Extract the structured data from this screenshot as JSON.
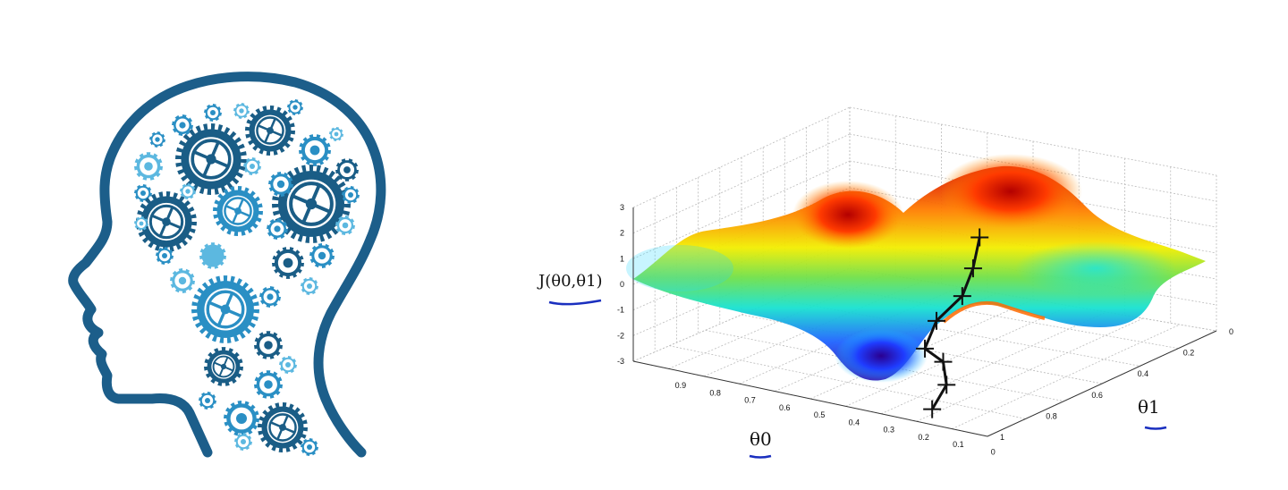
{
  "chart_data": {
    "type": "surface",
    "zlabel": "J(θ0,θ1)",
    "xlabel": "θ0",
    "ylabel": "θ1",
    "z_ticks": [
      "3",
      "2",
      "1",
      "0",
      "-1",
      "-2",
      "-3"
    ],
    "x_ticks": [
      "0.9",
      "0.8",
      "0.7",
      "0.6",
      "0.5",
      "0.4",
      "0.3",
      "0.2",
      "0.1",
      "0"
    ],
    "y_ticks": [
      "0",
      "0.2",
      "0.4",
      "0.6",
      "0.8",
      "1"
    ],
    "zlim": [
      -3,
      3
    ],
    "xlim": [
      1,
      0
    ],
    "ylim": [
      0,
      1
    ],
    "colormap": "jet",
    "descent_path": [
      {
        "theta0": 0.45,
        "theta1": 0.3,
        "J": 2.3
      },
      {
        "theta0": 0.45,
        "theta1": 0.33,
        "J": 1.2
      },
      {
        "theta0": 0.45,
        "theta1": 0.38,
        "J": 0.3
      },
      {
        "theta0": 0.48,
        "theta1": 0.45,
        "J": -0.5
      },
      {
        "theta0": 0.47,
        "theta1": 0.52,
        "J": -1.3
      },
      {
        "theta0": 0.4,
        "theta1": 0.55,
        "J": -1.5
      },
      {
        "theta0": 0.36,
        "theta1": 0.6,
        "J": -2.1
      },
      {
        "theta0": 0.37,
        "theta1": 0.65,
        "J": -2.9
      }
    ],
    "grid": true
  },
  "colors": {
    "head_outline": "#1c5e8a",
    "gear_dark": "#1a5d86",
    "gear_mid": "#2a8fc4",
    "gear_light": "#5cb8e0",
    "underline": "#1a2fbf"
  },
  "icons": {
    "illustration": "head-with-gears-icon"
  }
}
